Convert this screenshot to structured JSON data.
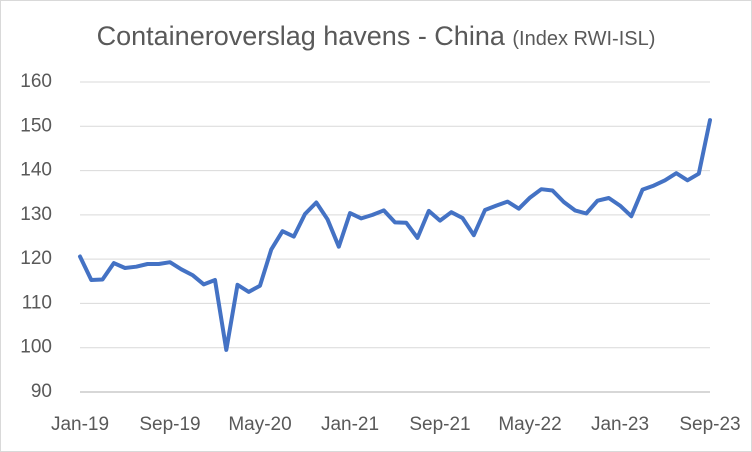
{
  "chart_data": {
    "type": "line",
    "title": "Containeroverslag havens - China",
    "subtitle": "(Index RWI-ISL)",
    "xlabel": "",
    "ylabel": "",
    "ylim": [
      90,
      160
    ],
    "yticks": [
      "90",
      "100",
      "110",
      "120",
      "130",
      "140",
      "150",
      "160"
    ],
    "xtick_labels": [
      "Jan-19",
      "Sep-19",
      "May-20",
      "Jan-21",
      "Sep-21",
      "May-22",
      "Jan-23",
      "Sep-23"
    ],
    "grid": true,
    "legend": "none",
    "series_color": "#4472c4",
    "x": [
      "Jan-19",
      "Feb-19",
      "Mar-19",
      "Apr-19",
      "May-19",
      "Jun-19",
      "Jul-19",
      "Aug-19",
      "Sep-19",
      "Oct-19",
      "Nov-19",
      "Dec-19",
      "Jan-20",
      "Feb-20",
      "Mar-20",
      "Apr-20",
      "May-20",
      "Jun-20",
      "Jul-20",
      "Aug-20",
      "Sep-20",
      "Oct-20",
      "Nov-20",
      "Dec-20",
      "Jan-21",
      "Feb-21",
      "Mar-21",
      "Apr-21",
      "May-21",
      "Jun-21",
      "Jul-21",
      "Aug-21",
      "Sep-21",
      "Oct-21",
      "Nov-21",
      "Dec-21",
      "Jan-22",
      "Feb-22",
      "Mar-22",
      "Apr-22",
      "May-22",
      "Jun-22",
      "Jul-22",
      "Aug-22",
      "Sep-22",
      "Oct-22",
      "Nov-22",
      "Dec-22",
      "Jan-23",
      "Feb-23",
      "Mar-23",
      "Apr-23",
      "May-23",
      "Jun-23",
      "Jul-23",
      "Aug-23",
      "Sep-23"
    ],
    "values": [
      120.6,
      115.3,
      115.4,
      119.1,
      118.0,
      118.3,
      118.9,
      118.9,
      119.3,
      117.7,
      116.4,
      114.3,
      115.3,
      99.5,
      114.2,
      112.6,
      114.0,
      122.2,
      126.3,
      125.1,
      130.2,
      132.8,
      129.0,
      122.8,
      130.4,
      129.2,
      130.0,
      131.0,
      128.3,
      128.2,
      124.8,
      130.9,
      128.7,
      130.6,
      129.3,
      125.4,
      131.1,
      132.1,
      133.0,
      131.4,
      133.9,
      135.8,
      135.5,
      132.9,
      131.0,
      130.3,
      133.2,
      133.8,
      132.1,
      129.7,
      135.7,
      136.6,
      137.8,
      139.4,
      137.8,
      139.3,
      151.4
    ]
  }
}
